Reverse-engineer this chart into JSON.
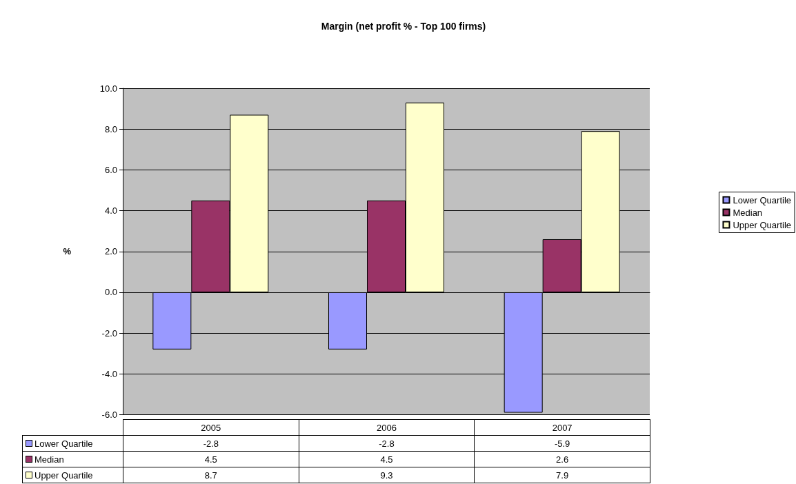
{
  "chart_data": {
    "type": "bar",
    "title": "Margin (net profit % - Top 100 firms)",
    "ylabel": "%",
    "categories": [
      "2005",
      "2006",
      "2007"
    ],
    "series": [
      {
        "name": "Lower Quartile",
        "color": "#9999ff",
        "values": [
          -2.8,
          -2.8,
          -5.9
        ]
      },
      {
        "name": "Median",
        "color": "#993366",
        "values": [
          4.5,
          4.5,
          2.6
        ]
      },
      {
        "name": "Upper Quartile",
        "color": "#ffffcc",
        "values": [
          8.7,
          9.3,
          7.9
        ]
      }
    ],
    "ylim": [
      -6,
      10
    ],
    "yticks": [
      {
        "value": -6,
        "label": "-6.0"
      },
      {
        "value": -4,
        "label": "-4.0"
      },
      {
        "value": -2,
        "label": "-2.0"
      },
      {
        "value": 0,
        "label": "0.0"
      },
      {
        "value": 2,
        "label": "2.0"
      },
      {
        "value": 4,
        "label": "4.0"
      },
      {
        "value": 6,
        "label": "6.0"
      },
      {
        "value": 8,
        "label": "8.0"
      },
      {
        "value": 10,
        "label": "10.0"
      }
    ],
    "grid": "y",
    "legend": "right",
    "data_labels": true
  }
}
